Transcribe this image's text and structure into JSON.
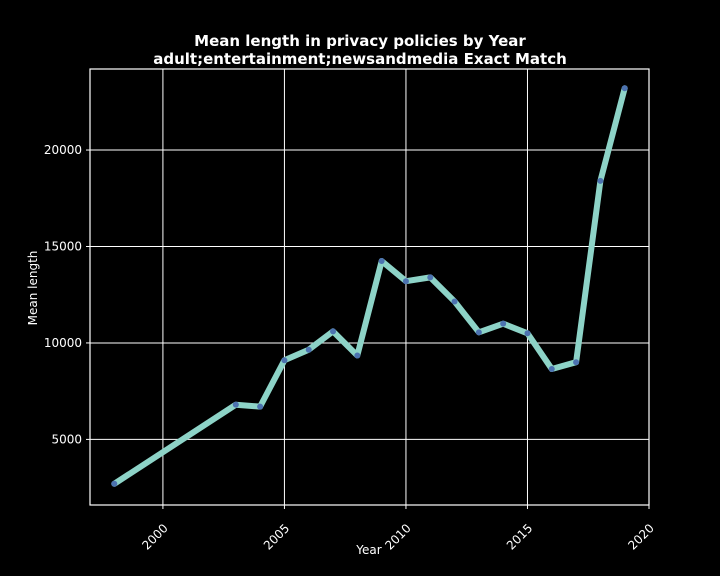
{
  "chart_data": {
    "type": "line",
    "title": "Mean length in privacy policies by Year",
    "subtitle": "adult;entertainment;newsandmedia Exact Match",
    "xlabel": "Year",
    "ylabel": "Mean length",
    "xlim": [
      1997.0,
      2020.0
    ],
    "ylim": [
      1600,
      24200
    ],
    "xticks": [
      2000,
      2005,
      2010,
      2015,
      2020
    ],
    "yticks": [
      5000,
      10000,
      15000,
      20000
    ],
    "grid": true,
    "series": [
      {
        "color": "#8dd3c7",
        "marker_color": "#4c72b0",
        "x": [
          1998,
          2003,
          2004,
          2005,
          2006,
          2007,
          2008,
          2009,
          2010,
          2011,
          2012,
          2013,
          2014,
          2015,
          2016,
          2017,
          2018,
          2019
        ],
        "y": [
          2700,
          6800,
          6700,
          9100,
          9650,
          10600,
          9350,
          14250,
          13200,
          13400,
          12150,
          10550,
          11000,
          10500,
          8650,
          9000,
          18400,
          23200
        ]
      }
    ],
    "colors": {
      "background": "#000000",
      "axes": "#ffffff",
      "grid": "#ffffff",
      "text": "#ffffff"
    }
  }
}
